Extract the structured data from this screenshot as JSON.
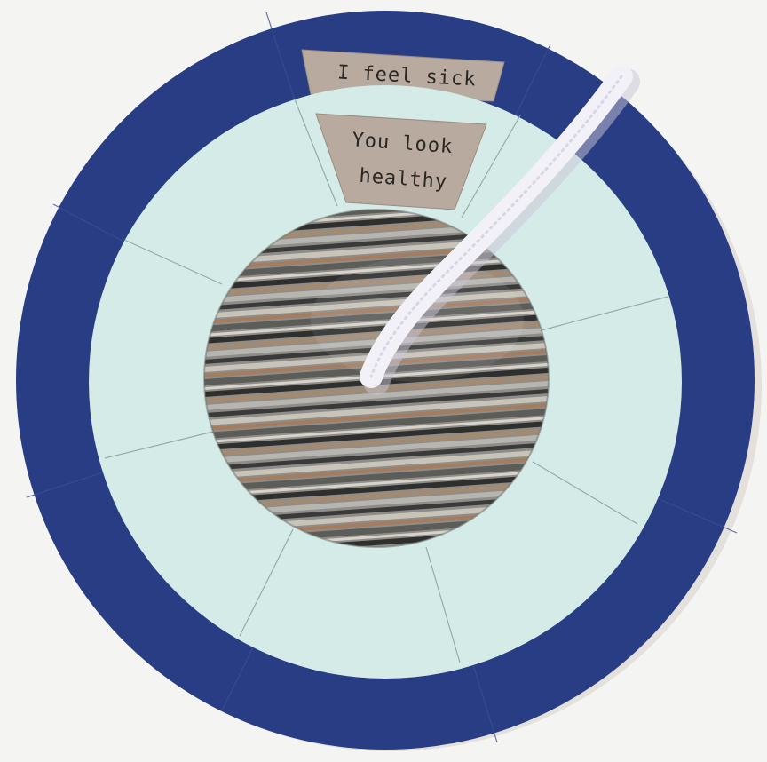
{
  "outer_tab": {
    "text": "I feel sick"
  },
  "inner_tab": {
    "line1": "You look",
    "line2": "healthy"
  },
  "colors": {
    "background": "#f4f5f3",
    "outer_ring": "#283d83",
    "inner_ring": "#d4ebe8",
    "tab_paper": "#b8aa9f",
    "planet_base": "#8b8b88",
    "pipe_cleaner": "#f2f1f7"
  }
}
